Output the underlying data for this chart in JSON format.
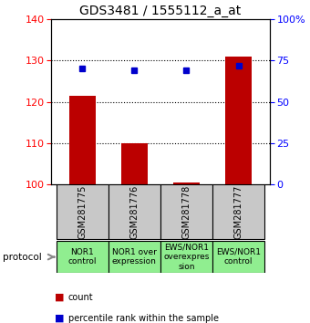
{
  "title": "GDS3481 / 1555112_a_at",
  "samples": [
    "GSM281775",
    "GSM281776",
    "GSM281778",
    "GSM281777"
  ],
  "protocols": [
    "NOR1\ncontrol",
    "NOR1 over\nexpression",
    "EWS/NOR1\noverexpres\nsion",
    "EWS/NOR1\ncontrol"
  ],
  "bar_values": [
    121.5,
    110.0,
    100.5,
    131.0
  ],
  "percentile_values": [
    70,
    69,
    69,
    72
  ],
  "ylim_left": [
    100,
    140
  ],
  "ylim_right": [
    0,
    100
  ],
  "yticks_left": [
    100,
    110,
    120,
    130,
    140
  ],
  "yticks_right": [
    0,
    25,
    50,
    75,
    100
  ],
  "ytick_labels_right": [
    "0",
    "25",
    "50",
    "75",
    "100%"
  ],
  "bar_color": "#bb0000",
  "percentile_color": "#0000cc",
  "sample_bg_color": "#c8c8c8",
  "protocol_bg_color": "#90ee90",
  "bar_width": 0.5,
  "x_positions": [
    0,
    1,
    2,
    3
  ],
  "title_fontsize": 10,
  "tick_fontsize": 8,
  "sample_fontsize": 7,
  "protocol_fontsize": 6.5
}
